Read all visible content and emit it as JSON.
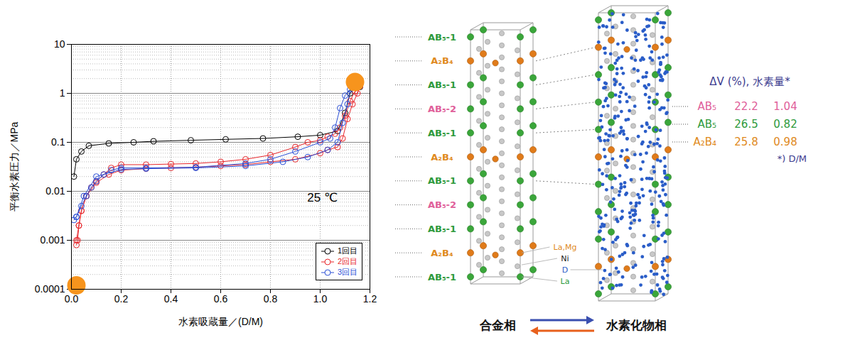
{
  "chart_data": {
    "type": "line",
    "xlabel": "水素吸蔵量／(D/M)",
    "ylabel": "平衡水素圧力／MPa",
    "xlim": [
      0,
      1.2
    ],
    "ylim": [
      0.0001,
      10
    ],
    "xticks": [
      {
        "value": 0,
        "label": "0.0"
      },
      0.2,
      0.4,
      0.6,
      0.8,
      {
        "value": 1,
        "label": "1.0"
      },
      1.2
    ],
    "yticks": [
      0.0001,
      0.001,
      0.01,
      0.1,
      1,
      10
    ],
    "log": "y",
    "grid": true,
    "legend": "bottom-right",
    "marker": "circle",
    "annotations": [
      {
        "text": "25 ℃"
      }
    ],
    "series": [
      {
        "name": "1回目",
        "color": "#000000",
        "marker": "circle",
        "x": [
          0.01,
          0.02,
          0.04,
          0.07,
          0.15,
          0.25,
          0.33,
          0.48,
          0.62,
          0.77,
          0.91,
          1.0,
          1.07,
          1.1,
          1.12,
          1.14,
          1.16
        ],
        "values": [
          0.02,
          0.045,
          0.065,
          0.085,
          0.095,
          0.1,
          0.105,
          0.11,
          0.115,
          0.12,
          0.13,
          0.14,
          0.17,
          0.4,
          1.0,
          1.3,
          1.35
        ]
      },
      {
        "name": "2回目",
        "color": "#e8262b",
        "marker": "circle",
        "x": [
          0.02,
          0.025,
          0.03,
          0.04,
          0.06,
          0.08,
          0.1,
          0.13,
          0.16,
          0.2,
          0.3,
          0.4,
          0.5,
          0.6,
          0.7,
          0.8,
          0.9,
          0.95,
          1.0,
          1.03,
          1.06,
          1.08,
          1.1,
          1.12,
          1.14,
          1.16,
          1.15,
          1.13,
          1.11,
          1.09,
          1.07,
          1.03,
          1.0,
          0.9,
          0.8,
          0.7,
          0.6,
          0.5,
          0.4,
          0.3,
          0.2,
          0.15,
          0.1,
          0.06,
          0.04,
          0.03,
          0.02
        ],
        "values": [
          0.0008,
          0.001,
          0.002,
          0.004,
          0.008,
          0.012,
          0.016,
          0.022,
          0.03,
          0.035,
          0.035,
          0.036,
          0.037,
          0.04,
          0.045,
          0.055,
          0.08,
          0.1,
          0.11,
          0.13,
          0.15,
          0.2,
          0.35,
          0.7,
          1.1,
          1.4,
          1.0,
          0.6,
          0.3,
          0.12,
          0.08,
          0.07,
          0.06,
          0.045,
          0.04,
          0.035,
          0.033,
          0.031,
          0.03,
          0.029,
          0.027,
          0.022,
          0.015,
          0.008,
          0.004,
          0.002,
          0.001
        ]
      },
      {
        "name": "3回目",
        "color": "#2b4fd6",
        "marker": "circle",
        "x": [
          0.01,
          0.02,
          0.04,
          0.06,
          0.08,
          0.1,
          0.13,
          0.16,
          0.2,
          0.3,
          0.5,
          0.7,
          0.8,
          0.9,
          1.0,
          1.04,
          1.06,
          1.08,
          1.1,
          1.12,
          1.11,
          1.09,
          1.07,
          1.03,
          0.95,
          0.85,
          0.7,
          0.5,
          0.3,
          0.2,
          0.1,
          0.05,
          0.02
        ],
        "values": [
          0.0026,
          0.003,
          0.005,
          0.008,
          0.012,
          0.016,
          0.022,
          0.027,
          0.03,
          0.03,
          0.031,
          0.037,
          0.045,
          0.065,
          0.1,
          0.12,
          0.2,
          0.5,
          0.9,
          1.2,
          0.6,
          0.25,
          0.1,
          0.07,
          0.05,
          0.04,
          0.033,
          0.03,
          0.029,
          0.028,
          0.02,
          0.008,
          0.003
        ]
      }
    ],
    "highlight_points": {
      "x": [
        0.02,
        1.14
      ],
      "y": [
        0.00012,
        1.7
      ],
      "color": "#f7941d"
    }
  },
  "diagram": {
    "layers": [
      {
        "label": "AB₅-1",
        "color": "#2e9a3c"
      },
      {
        "label": "A₂B₄",
        "color": "#e08a1e"
      },
      {
        "label": "AB₅-1",
        "color": "#2e9a3c"
      },
      {
        "label": "AB₅-2",
        "color": "#e0609a"
      },
      {
        "label": "AB₅-1",
        "color": "#2e9a3c"
      },
      {
        "label": "A₂B₄",
        "color": "#e08a1e"
      },
      {
        "label": "AB₅-1",
        "color": "#2e9a3c"
      },
      {
        "label": "AB₅-2",
        "color": "#e0609a"
      },
      {
        "label": "AB₅-1",
        "color": "#2e9a3c"
      },
      {
        "label": "A₂B₄",
        "color": "#e08a1e"
      },
      {
        "label": "AB₅-1",
        "color": "#2e9a3c"
      }
    ],
    "atom_labels": [
      {
        "text": "La,Mg",
        "color": "#e08a1e"
      },
      {
        "text": "Ni",
        "color": "#222222"
      },
      {
        "text": "D",
        "color": "#2a5dc8"
      },
      {
        "text": "La",
        "color": "#2e9a3c"
      }
    ],
    "table": {
      "header": "ΔV (%), 水素量*",
      "header_color": "#3b3b8f",
      "rows": [
        {
          "label": "AB₅",
          "dV": 22.2,
          "hydrogen": 1.04,
          "color": "#e0609a"
        },
        {
          "label": "AB₅",
          "dV": 26.5,
          "hydrogen": 0.82,
          "color": "#2e9a3c"
        },
        {
          "label": "A₂B₄",
          "dV": 25.8,
          "hydrogen": 0.98,
          "color": "#e08a1e"
        }
      ],
      "footnote": "*) D/M"
    },
    "phase_labels": [
      "合金相",
      "水素化物相"
    ]
  }
}
